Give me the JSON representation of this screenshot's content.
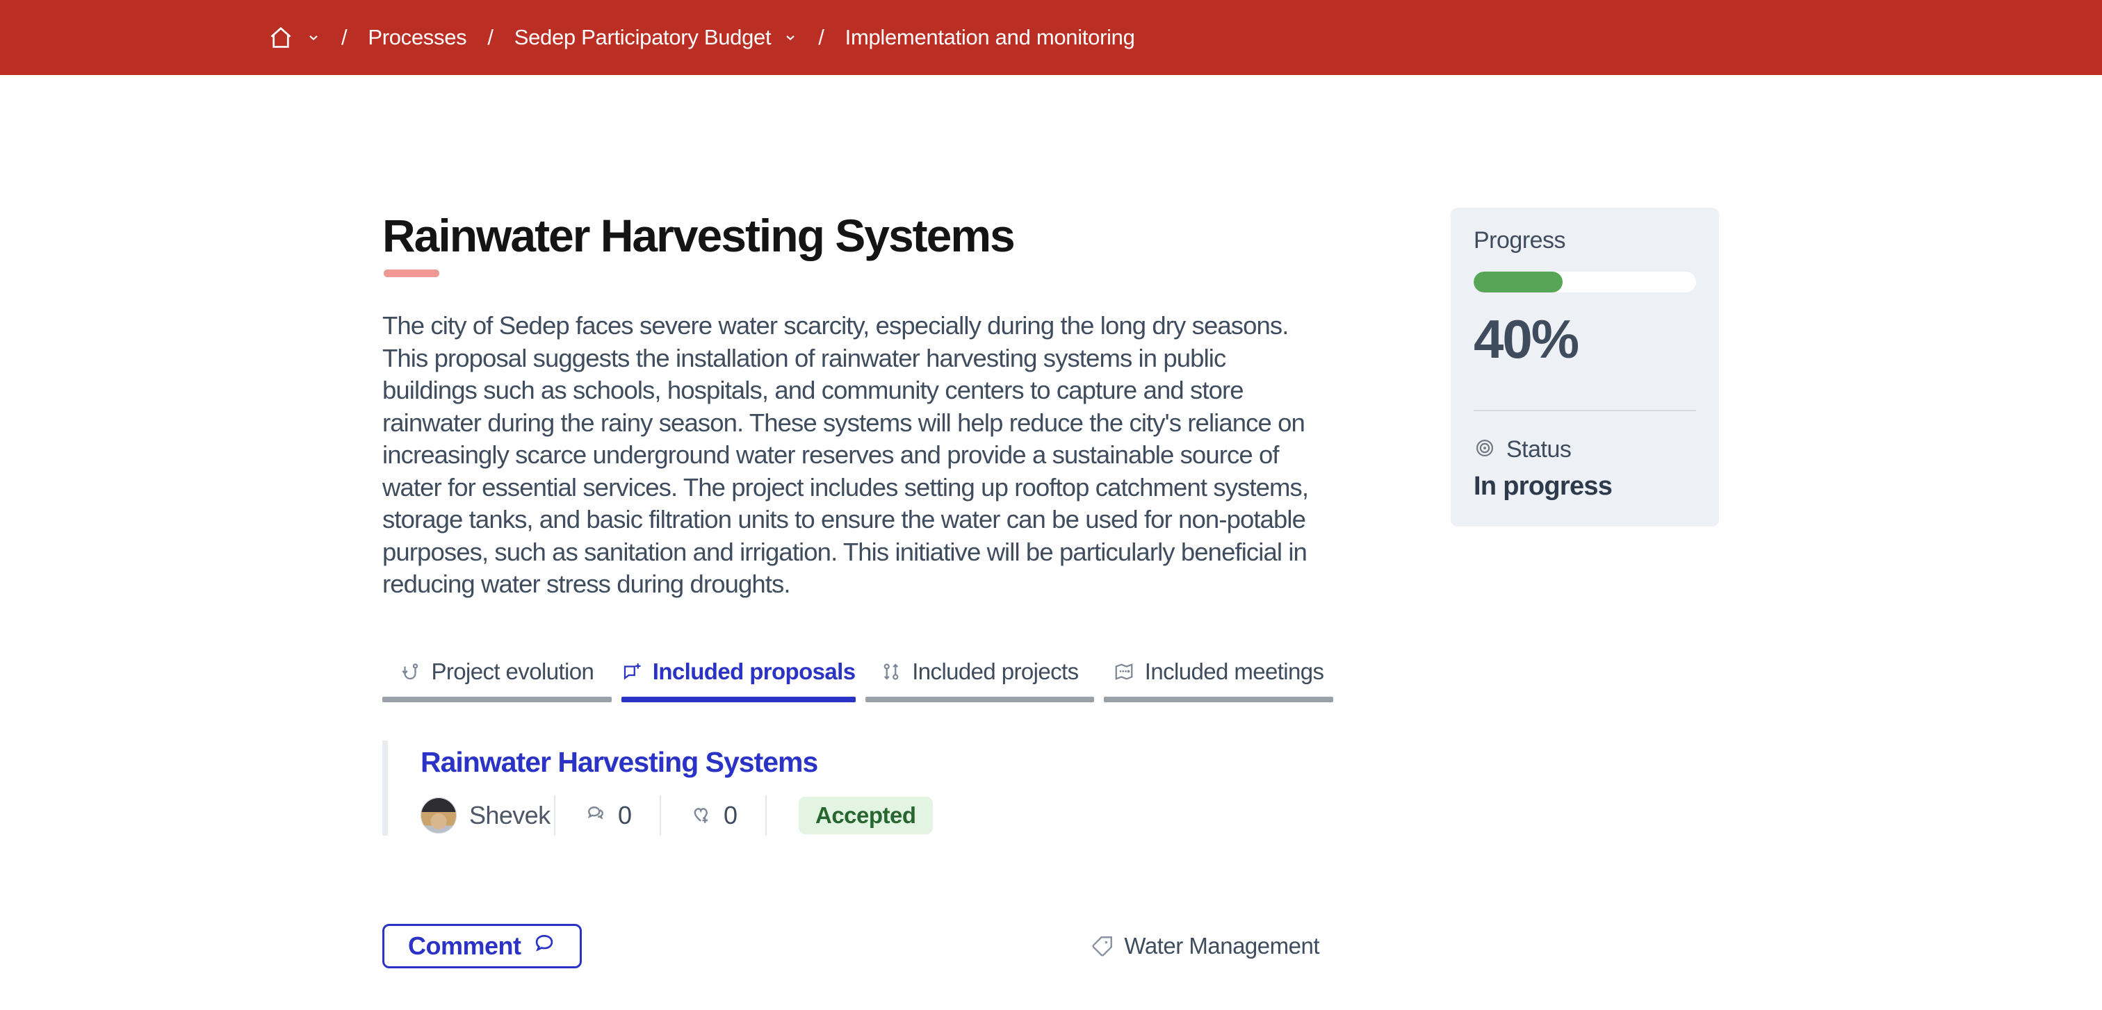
{
  "breadcrumb": {
    "separator": "/",
    "items": [
      {
        "label": "Processes"
      },
      {
        "label": "Sedep Participatory Budget"
      },
      {
        "label": "Implementation and monitoring"
      }
    ]
  },
  "project": {
    "title": "Rainwater Harvesting Systems",
    "description": "The city of Sedep faces severe water scarcity, especially during the long dry seasons. This proposal suggests the installation of rainwater harvesting systems in public buildings such as schools, hospitals, and community centers to capture and store rainwater during the rainy season. These systems will help reduce the city's reliance on increasingly scarce underground water reserves and provide a sustainable source of water for essential services. The project includes setting up rooftop catchment systems, storage tanks, and basic filtration units to ensure the water can be used for non-potable purposes, such as sanitation and irrigation. This initiative will be particularly beneficial in reducing water stress during droughts."
  },
  "tabs": [
    {
      "label": "Project evolution",
      "icon": "route-icon",
      "active": false
    },
    {
      "label": "Included proposals",
      "icon": "chat-plus-icon",
      "active": true
    },
    {
      "label": "Included projects",
      "icon": "commit-icon",
      "active": false
    },
    {
      "label": "Included meetings",
      "icon": "map-icon",
      "active": false
    }
  ],
  "included_proposal": {
    "title": "Rainwater Harvesting Systems",
    "author": "Shevek",
    "comments_count": "0",
    "endorsements_count": "0",
    "status_badge": "Accepted"
  },
  "actions": {
    "comment_label": "Comment"
  },
  "category": {
    "label": "Water Management"
  },
  "sidebar": {
    "progress_label": "Progress",
    "progress_percent": "40%",
    "progress_value": 40,
    "status_label": "Status",
    "status_value": "In progress"
  },
  "colors": {
    "navbar_red": "#bb2e23",
    "accent_blue": "#2a33c5",
    "progress_green": "#57a657",
    "badge_green_bg": "#e3f5e2",
    "badge_green_text": "#27672f",
    "title_underline": "#ef9894"
  }
}
